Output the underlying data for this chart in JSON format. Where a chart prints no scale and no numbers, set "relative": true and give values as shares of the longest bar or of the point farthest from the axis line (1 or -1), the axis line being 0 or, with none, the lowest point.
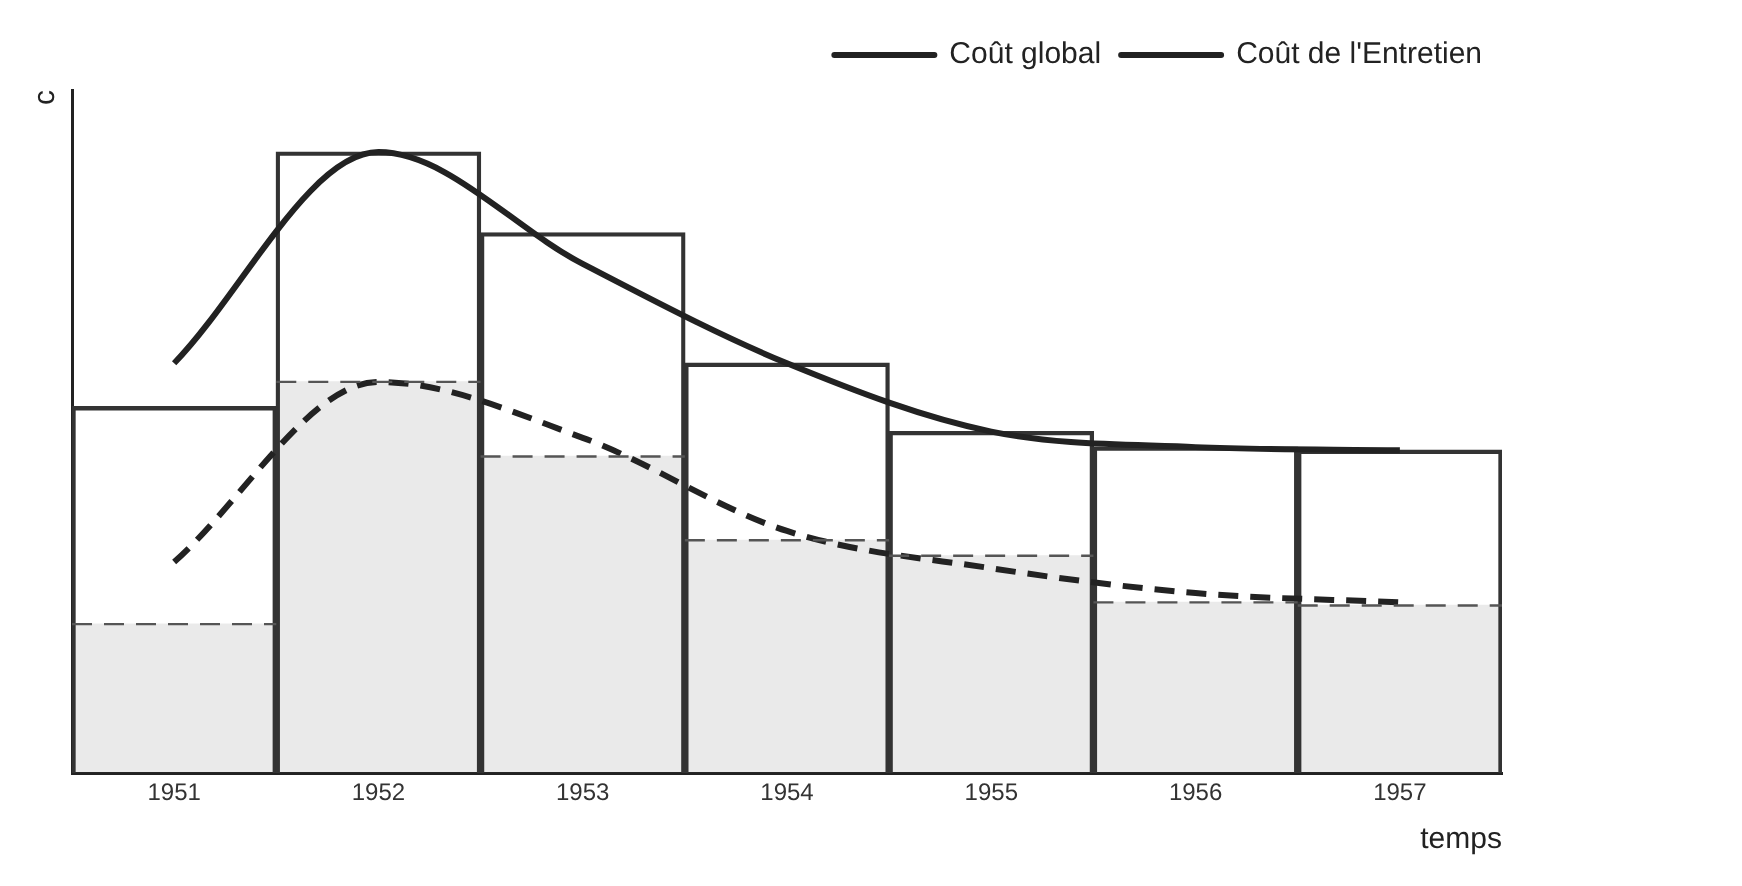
{
  "chart_data": {
    "type": "bar",
    "relative": true,
    "ylabel": "c",
    "xlabel": "temps",
    "categories": [
      "1951",
      "1952",
      "1953",
      "1954",
      "1955",
      "1956",
      "1957"
    ],
    "legend": "top right",
    "grid": false,
    "series": [
      {
        "color": "#333333",
        "values": [
          0.59,
          1,
          0.87,
          0.66,
          0.55,
          0.525,
          0.52
        ]
      },
      {
        "color": "#555555",
        "line_style": "dashed",
        "values": [
          0.24,
          0.63,
          0.51,
          0.375,
          0.35,
          0.275,
          0.27
        ]
      },
      {
        "type": "line",
        "name": "Coût global",
        "color": "#222222",
        "line_style": "solid",
        "values": [
          0.66,
          1,
          0.82,
          0.66,
          0.55,
          0.525,
          0.52
        ]
      },
      {
        "type": "line",
        "name": "Coût de l'Entretien",
        "color": "#222222",
        "line_style": "dashed",
        "values": [
          0.34,
          0.63,
          0.54,
          0.39,
          0.33,
          0.29,
          0.275
        ]
      }
    ]
  }
}
